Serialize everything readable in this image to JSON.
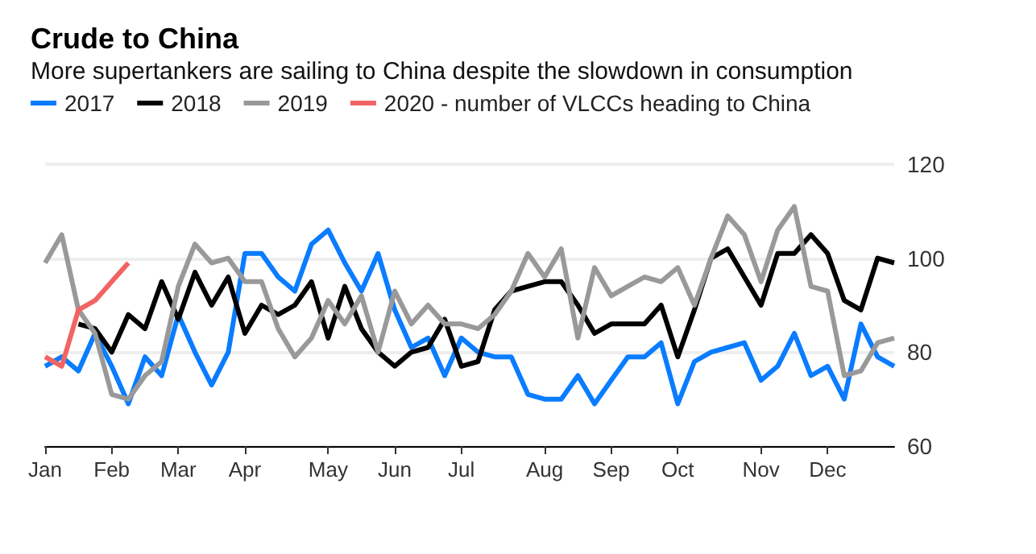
{
  "chart_data": {
    "type": "line",
    "title": "Crude to China",
    "subtitle": "More supertankers are sailing to China despite the slowdown in consumption",
    "categories": [
      "Jan",
      null,
      null,
      null,
      "Feb",
      null,
      null,
      null,
      "Mar",
      null,
      null,
      null,
      "Apr",
      null,
      null,
      null,
      null,
      "May",
      null,
      null,
      null,
      "Jun",
      null,
      null,
      null,
      "Jul",
      null,
      null,
      null,
      null,
      "Aug",
      null,
      null,
      null,
      "Sep",
      null,
      null,
      null,
      "Oct",
      null,
      null,
      null,
      null,
      "Nov",
      null,
      null,
      null,
      "Dec",
      null,
      null,
      null,
      null
    ],
    "ylim": [
      60,
      120
    ],
    "yticks": [
      60,
      80,
      100,
      120
    ],
    "grid": "y",
    "legend": "top left",
    "line_style": "solid",
    "marker": "none",
    "series": [
      {
        "name": "2017",
        "color": "#0a7cff",
        "values": [
          77,
          79,
          76,
          84,
          77,
          69,
          79,
          75,
          88,
          80,
          73,
          80,
          101,
          101,
          96,
          93,
          103,
          106,
          99,
          93,
          101,
          89,
          81,
          83,
          75,
          83,
          80,
          79,
          79,
          71,
          70,
          70,
          75,
          69,
          74,
          79,
          79,
          82,
          69,
          78,
          80,
          81,
          82,
          74,
          77,
          84,
          75,
          77,
          70,
          86,
          79,
          77
        ]
      },
      {
        "name": "2018",
        "color": "#000000",
        "values": [
          null,
          null,
          86,
          85,
          80,
          88,
          85,
          95,
          87,
          97,
          90,
          96,
          84,
          90,
          88,
          90,
          95,
          83,
          94,
          85,
          80,
          77,
          80,
          81,
          87,
          77,
          78,
          89,
          93,
          94,
          95,
          95,
          90,
          84,
          86,
          86,
          86,
          90,
          79,
          89,
          100,
          102,
          96,
          90,
          101,
          101,
          105,
          101,
          91,
          89,
          100,
          99
        ]
      },
      {
        "name": "2019",
        "color": "#999999",
        "values": [
          99,
          105,
          89,
          84,
          71,
          70,
          75,
          78,
          94,
          103,
          99,
          100,
          95,
          95,
          85,
          79,
          83,
          91,
          86,
          92,
          80,
          93,
          86,
          90,
          86,
          86,
          85,
          88,
          93,
          101,
          96,
          102,
          83,
          98,
          92,
          94,
          96,
          95,
          98,
          90,
          100,
          109,
          105,
          95,
          106,
          111,
          94,
          93,
          75,
          76,
          82,
          83
        ]
      },
      {
        "name": "2020 - number of VLCCs heading to China",
        "color": "#f26464",
        "values": [
          79,
          77,
          89,
          91,
          95,
          99,
          null,
          null,
          null,
          null,
          null,
          null,
          null,
          null,
          null,
          null,
          null,
          null,
          null,
          null,
          null,
          null,
          null,
          null,
          null,
          null,
          null,
          null,
          null,
          null,
          null,
          null,
          null,
          null,
          null,
          null,
          null,
          null,
          null,
          null,
          null,
          null,
          null,
          null,
          null,
          null,
          null,
          null,
          null,
          null,
          null,
          null
        ]
      }
    ]
  }
}
